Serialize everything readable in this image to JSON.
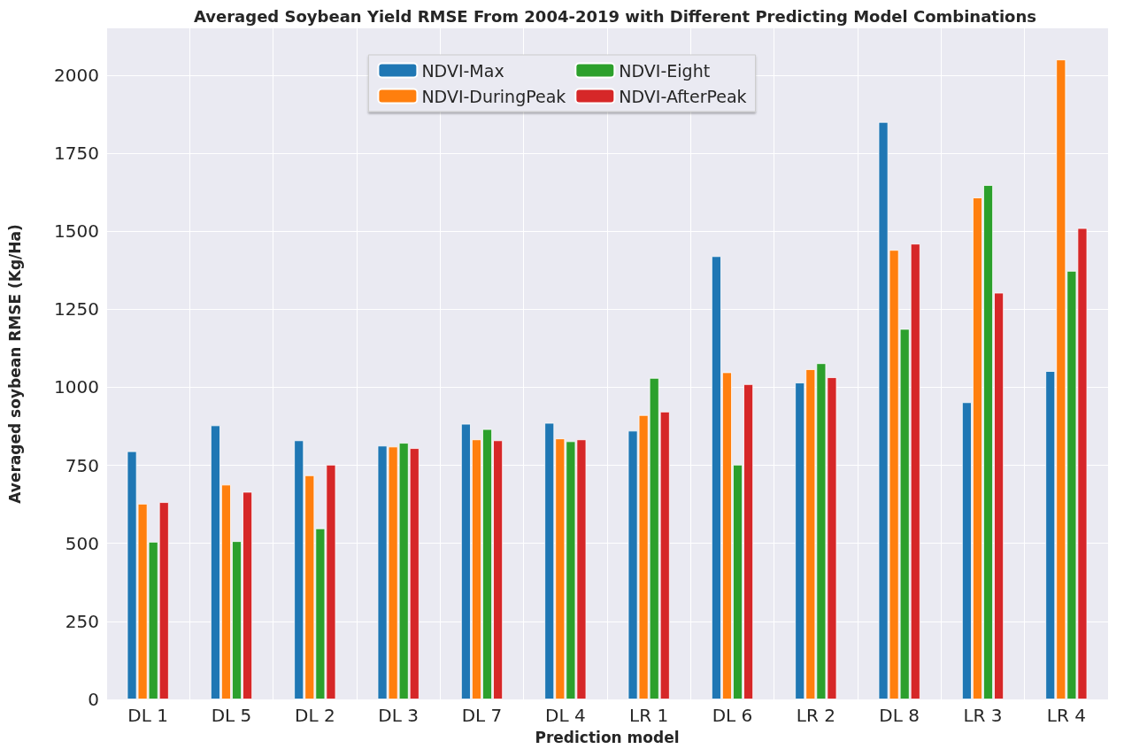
{
  "chart_data": {
    "type": "bar",
    "title": "Averaged Soybean Yield RMSE From 2004-2019 with Different Predicting Model Combinations",
    "xlabel": "Prediction model",
    "ylabel": "Averaged soybean RMSE (Kg/Ha)",
    "categories": [
      "DL 1",
      "DL 5",
      "DL 2",
      "DL 3",
      "DL 7",
      "DL 4",
      "LR 1",
      "DL 6",
      "LR 2",
      "DL 8",
      "LR 3",
      "LR 4"
    ],
    "series": [
      {
        "name": "NDVI-Max",
        "color": "#1f77b4",
        "values": [
          795,
          878,
          830,
          813,
          883,
          886,
          861,
          1420,
          1015,
          1850,
          952,
          1052
        ]
      },
      {
        "name": "NDVI-DuringPeak",
        "color": "#ff7f0e",
        "values": [
          627,
          688,
          718,
          810,
          833,
          836,
          911,
          1048,
          1058,
          1440,
          1608,
          2050
        ]
      },
      {
        "name": "NDVI-Eight",
        "color": "#2ca02c",
        "values": [
          505,
          507,
          548,
          822,
          866,
          827,
          1030,
          752,
          1077,
          1187,
          1648,
          1373
        ]
      },
      {
        "name": "NDVI-AfterPeak",
        "color": "#d62728",
        "values": [
          632,
          665,
          752,
          805,
          830,
          833,
          922,
          1010,
          1032,
          1460,
          1303,
          1510
        ]
      }
    ],
    "ylim": [
      0,
      2150
    ],
    "yticks": [
      0,
      250,
      500,
      750,
      1000,
      1250,
      1500,
      1750,
      2000
    ],
    "grid": true,
    "legend": "top"
  }
}
